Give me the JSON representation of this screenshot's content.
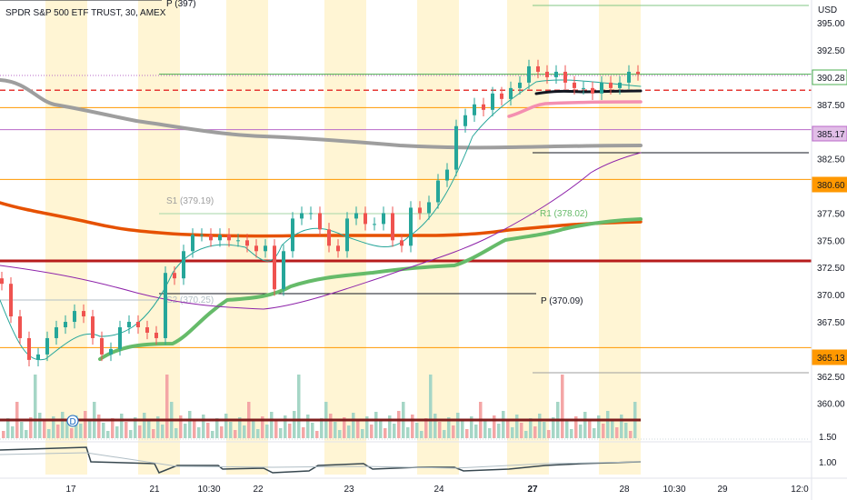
{
  "chart_data": {
    "type": "candlestick",
    "title": "SPDR S&P 500 ETF TRUST, 30, AMEX",
    "currency": "USD",
    "y_ticks": [
      395.0,
      392.5,
      387.5,
      382.5,
      377.5,
      375.0,
      372.5,
      370.0,
      367.5,
      362.5,
      360.0
    ],
    "y_range": [
      356.8,
      397.1
    ],
    "x_labels": [
      {
        "label": "17",
        "bold": false
      },
      {
        "label": "21",
        "bold": false
      },
      {
        "label": "10:30",
        "bold": false
      },
      {
        "label": "22",
        "bold": false
      },
      {
        "label": "23",
        "bold": false
      },
      {
        "label": "24",
        "bold": false
      },
      {
        "label": "27",
        "bold": true
      },
      {
        "label": "28",
        "bold": false
      },
      {
        "label": "10:30",
        "bold": false
      },
      {
        "label": "29",
        "bold": false
      },
      {
        "label": "12:0",
        "bold": false
      }
    ],
    "price_badges": [
      {
        "value": "390.28",
        "bg": "#ffffff",
        "fg": "#131722",
        "border": "#4caf50"
      },
      {
        "value": "385.17",
        "bg": "#e1bee7",
        "fg": "#9c27b0",
        "border": "#ba68c8"
      },
      {
        "value": "380.60",
        "bg": "#ff9800",
        "fg": "#131722",
        "border": "#ff9800"
      },
      {
        "value": "365.13",
        "bg": "#ff9800",
        "fg": "#131722",
        "border": "#ff9800"
      }
    ],
    "pivot_labels": [
      {
        "text": "P (397)",
        "y": 397.1
      },
      {
        "text": "S1 (379.19)",
        "y": 379.19
      },
      {
        "text": "R1 (378.02)",
        "y": 378.02
      },
      {
        "text": "S2 (370.25)",
        "y": 370.25
      },
      {
        "text": "P (370.09)",
        "y": 370.09
      }
    ],
    "horizontal_levels": [
      {
        "name": "P (397)",
        "value": 397.1,
        "color": "#131722"
      },
      {
        "name": "390.28",
        "value": 390.28,
        "color": "#4caf50"
      },
      {
        "name": "388.8 dashed",
        "value": 388.8,
        "color": "#e53935"
      },
      {
        "name": "387.2",
        "value": 387.2,
        "color": "#ff9800"
      },
      {
        "name": "385.17",
        "value": 385.17,
        "color": "#ba68c8"
      },
      {
        "name": "380.60",
        "value": 380.6,
        "color": "#ff9800"
      },
      {
        "name": "373.1",
        "value": 373.1,
        "color": "#b71c1c"
      },
      {
        "name": "365.13",
        "value": 365.13,
        "color": "#ff9800"
      },
      {
        "name": "P (370.09)",
        "value": 370.09,
        "color": "#131722"
      }
    ],
    "oscillator_ticks": [
      "1.50",
      "1.00"
    ],
    "price_series": {
      "x": [
        0,
        10,
        20,
        30,
        40,
        50,
        60,
        70,
        80,
        90,
        100,
        110,
        120,
        130,
        140,
        150,
        160,
        170,
        180,
        190,
        200,
        210,
        220,
        230,
        240,
        250,
        260,
        270,
        280,
        290,
        300,
        310,
        320,
        330,
        340,
        350,
        360,
        370,
        380,
        390,
        400,
        410,
        420,
        430,
        440,
        450,
        460,
        470,
        480,
        490,
        500,
        510,
        520,
        530,
        540,
        550,
        560,
        570,
        580,
        590,
        600,
        610,
        620,
        630,
        640,
        650,
        660,
        670,
        680,
        690,
        700
      ],
      "close": [
        371.0,
        368.0,
        366.0,
        364.0,
        364.5,
        366.0,
        367.0,
        367.5,
        368.5,
        368.0,
        366.0,
        364.5,
        365.0,
        367.0,
        367.5,
        367.0,
        366.5,
        366.0,
        372.0,
        371.5,
        374.0,
        375.5,
        375.5,
        375.0,
        375.5,
        375.0,
        375.0,
        374.5,
        374.0,
        374.5,
        370.5,
        374.0,
        377.0,
        377.5,
        377.5,
        376.0,
        374.5,
        374.0,
        377.0,
        377.5,
        376.5,
        376.5,
        377.5,
        375.0,
        374.5,
        378.0,
        377.5,
        378.5,
        380.5,
        381.5,
        385.5,
        386.5,
        387.5,
        387.0,
        388.5,
        388.0,
        389.0,
        389.5,
        391.0,
        390.5,
        390.0,
        390.5,
        389.5,
        389.0,
        389.0,
        388.5,
        389.5,
        389.0,
        389.5,
        390.5,
        390.28
      ]
    }
  }
}
